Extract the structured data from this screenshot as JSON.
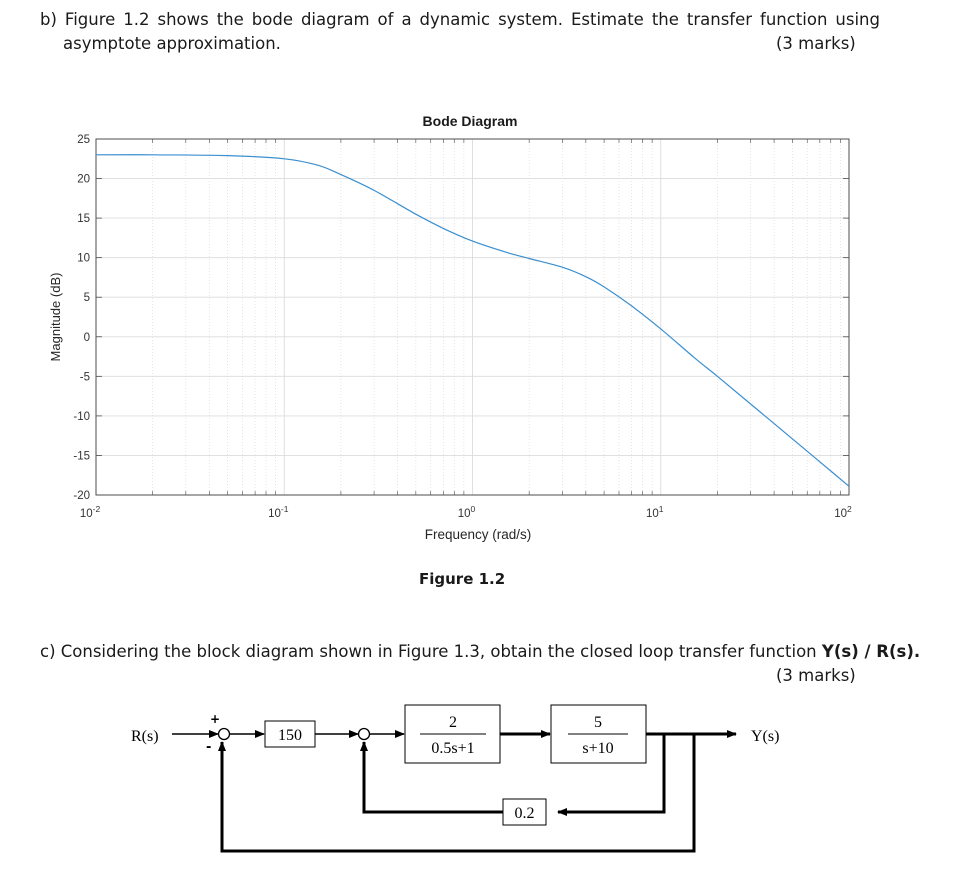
{
  "question_b": {
    "line1": "b) Figure 1.2 shows the bode diagram of a dynamic system. Estimate the transfer function using",
    "line2": "asymptote approximation.",
    "marks": "(3 marks)"
  },
  "figure_caption_1": "Figure 1.2",
  "question_c": {
    "prefix": "c) Considering the block diagram shown in Figure 1.3, obtain the closed loop transfer function ",
    "tf_bold": "Y(s) / R(s)",
    "suffix": ".",
    "marks": "(3 marks)"
  },
  "chart_data": {
    "type": "line",
    "title": "Bode Diagram",
    "xlabel": "Frequency  (rad/s)",
    "ylabel": "Magnitude (dB)",
    "xscale": "log",
    "xlim": [
      0.01,
      100
    ],
    "ylim": [
      -20,
      25
    ],
    "grid": true,
    "x_ticks": [
      {
        "base": "10",
        "exp": "-2"
      },
      {
        "base": "10",
        "exp": "-1"
      },
      {
        "base": "10",
        "exp": "0"
      },
      {
        "base": "10",
        "exp": "1"
      },
      {
        "base": "10",
        "exp": "2"
      }
    ],
    "y_ticks": [
      "25",
      "20",
      "15",
      "10",
      "5",
      "0",
      "-5",
      "-10",
      "-15",
      "-20"
    ],
    "line_color": "#3a8fd0",
    "series": [
      {
        "x": [
          0.01,
          0.02,
          0.05,
          0.1,
          0.15,
          0.2,
          0.3,
          0.5,
          0.7,
          1,
          1.5,
          2,
          3,
          4,
          5,
          7,
          10,
          15,
          20,
          30,
          50,
          70,
          100
        ],
        "values": [
          23,
          23,
          22.9,
          22.5,
          21.7,
          20.5,
          18.5,
          15.5,
          13.7,
          12.1,
          10.7,
          9.9,
          8.8,
          7.6,
          6.3,
          3.9,
          1.0,
          -2.6,
          -5.0,
          -8.5,
          -12.9,
          -15.8,
          -18.9
        ]
      }
    ]
  },
  "block_diagram": {
    "input_label": "R(s)",
    "output_label": "Y(s)",
    "plus_sign": "+",
    "minus_sign": "-",
    "gain_block": "150",
    "tf1": {
      "num": "2",
      "den": "0.5s+1"
    },
    "tf2": {
      "num": "5",
      "den": "s+10"
    },
    "feedback_gain": "0.2"
  }
}
